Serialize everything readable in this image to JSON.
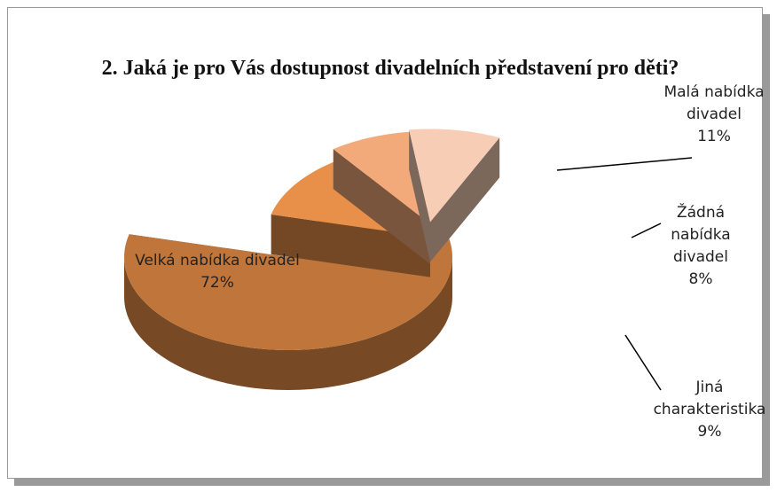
{
  "chart_data": {
    "type": "pie3d",
    "title": "2. Jaká je pro Vás dostupnost divadelních představení pro děti?",
    "categories": [
      "Velká nabídka divadel",
      "Malá nabídka divadel",
      "Žádná nabídka divadel",
      "Jiná charakteristika"
    ],
    "values": [
      72,
      11,
      8,
      9
    ],
    "value_labels": [
      "72%",
      "11%",
      "8%",
      "9%"
    ],
    "colors": [
      "#c0763a",
      "#e8904a",
      "#f2aa7a",
      "#f8cdb5"
    ]
  }
}
